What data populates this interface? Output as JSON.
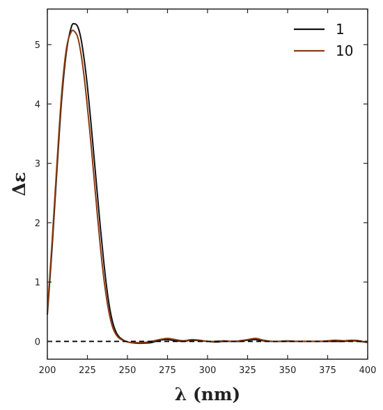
{
  "chart_data": {
    "type": "line",
    "title": "",
    "xlabel": "λ (nm)",
    "ylabel": "Δε",
    "xlim": [
      200,
      400
    ],
    "ylim": [
      -0.3,
      5.6
    ],
    "xticks": [
      200,
      225,
      250,
      275,
      300,
      325,
      350,
      375,
      400
    ],
    "yticks": [
      0,
      1,
      2,
      3,
      4,
      5
    ],
    "grid": false,
    "legend_position": "top-right",
    "reference_line": {
      "y": 0,
      "style": "dashed",
      "color": "#000000"
    },
    "series": [
      {
        "name": "1",
        "color": "#111111",
        "x": [
          200,
          203,
          206,
          209,
          212,
          215,
          217,
          219,
          221,
          223,
          225,
          227,
          229,
          231,
          233,
          235,
          237,
          239,
          241,
          243,
          245,
          247,
          249,
          252,
          256,
          260,
          265,
          270,
          275,
          280,
          285,
          290,
          295,
          300,
          305,
          310,
          315,
          320,
          325,
          330,
          335,
          340,
          345,
          350,
          355,
          360,
          365,
          370,
          375,
          380,
          385,
          390,
          395,
          400
        ],
        "y": [
          0.45,
          1.6,
          2.9,
          4.1,
          4.9,
          5.3,
          5.35,
          5.3,
          5.1,
          4.75,
          4.3,
          3.75,
          3.15,
          2.55,
          1.95,
          1.4,
          0.92,
          0.55,
          0.3,
          0.15,
          0.07,
          0.03,
          0.0,
          -0.02,
          -0.03,
          -0.03,
          -0.02,
          0.02,
          0.03,
          0.01,
          0.0,
          0.02,
          0.01,
          0.0,
          -0.01,
          0.0,
          0.0,
          0.0,
          0.02,
          0.03,
          0.01,
          0.0,
          0.0,
          0.0,
          0.0,
          0.0,
          0.0,
          0.0,
          0.0,
          0.0,
          0.0,
          0.01,
          0.0,
          -0.02
        ]
      },
      {
        "name": "10",
        "color": "#8b3a0f",
        "x": [
          200,
          203,
          206,
          209,
          212,
          215,
          217,
          219,
          221,
          223,
          225,
          227,
          229,
          231,
          233,
          235,
          237,
          239,
          241,
          243,
          245,
          247,
          249,
          252,
          256,
          260,
          265,
          270,
          275,
          280,
          285,
          290,
          295,
          300,
          305,
          310,
          315,
          320,
          325,
          330,
          335,
          340,
          345,
          350,
          355,
          360,
          365,
          370,
          375,
          380,
          385,
          390,
          395,
          400
        ],
        "y": [
          0.5,
          1.7,
          3.0,
          4.2,
          4.95,
          5.22,
          5.22,
          5.12,
          4.85,
          4.45,
          3.95,
          3.4,
          2.8,
          2.2,
          1.62,
          1.12,
          0.72,
          0.42,
          0.22,
          0.11,
          0.05,
          0.02,
          0.0,
          -0.02,
          -0.02,
          -0.02,
          0.0,
          0.03,
          0.05,
          0.03,
          0.01,
          0.03,
          0.02,
          0.0,
          0.0,
          0.01,
          0.0,
          0.01,
          0.03,
          0.05,
          0.02,
          0.0,
          0.0,
          0.01,
          0.0,
          0.0,
          0.0,
          0.0,
          0.01,
          0.02,
          0.01,
          0.02,
          0.01,
          -0.02
        ]
      }
    ]
  }
}
